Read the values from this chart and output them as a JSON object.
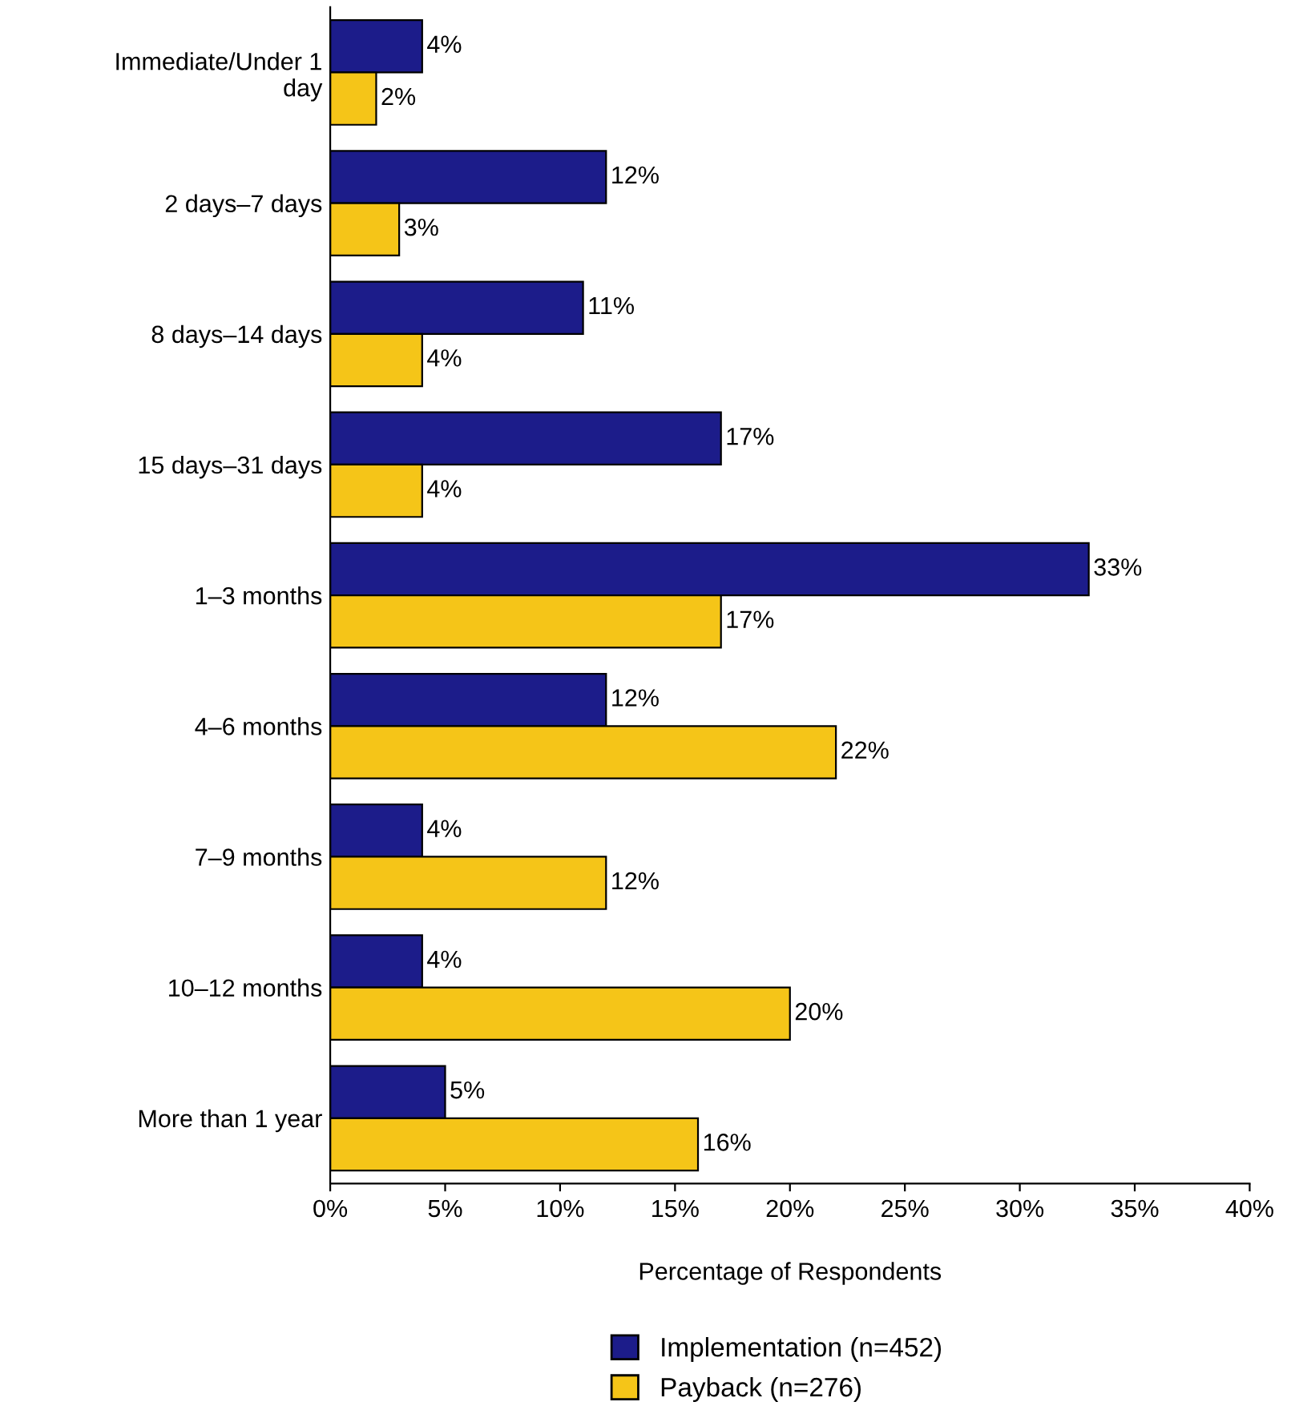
{
  "chart_data": {
    "type": "bar",
    "orientation": "horizontal",
    "categories": [
      "Immediate/Under 1\nday",
      "2 days–7 days",
      "8 days–14 days",
      "15 days–31 days",
      "1–3 months",
      "4–6 months",
      "7–9 months",
      "10–12 months",
      "More than 1 year"
    ],
    "series": [
      {
        "name": "Implementation (n=452)",
        "color": "#1c1c8a",
        "values": [
          4,
          12,
          11,
          17,
          33,
          12,
          4,
          4,
          5
        ],
        "value_labels": [
          "4%",
          "12%",
          "11%",
          "17%",
          "33%",
          "12%",
          "4%",
          "4%",
          "5%"
        ]
      },
      {
        "name": "Payback (n=276)",
        "color": "#f5c518",
        "values": [
          2,
          3,
          4,
          4,
          17,
          22,
          12,
          20,
          16
        ],
        "value_labels": [
          "2%",
          "3%",
          "4%",
          "4%",
          "17%",
          "22%",
          "12%",
          "20%",
          "16%"
        ]
      }
    ],
    "xlabel": "Percentage of Respondents",
    "xlim": [
      0,
      40
    ],
    "xticks": [
      {
        "value": 0,
        "label": "0%"
      },
      {
        "value": 5,
        "label": "5%"
      },
      {
        "value": 10,
        "label": "10%"
      },
      {
        "value": 15,
        "label": "15%"
      },
      {
        "value": 20,
        "label": "20%"
      },
      {
        "value": 25,
        "label": "25%"
      },
      {
        "value": 30,
        "label": "30%"
      },
      {
        "value": 35,
        "label": "35%"
      },
      {
        "value": 40,
        "label": "40%"
      }
    ],
    "grid": false,
    "legend": "bottom"
  }
}
